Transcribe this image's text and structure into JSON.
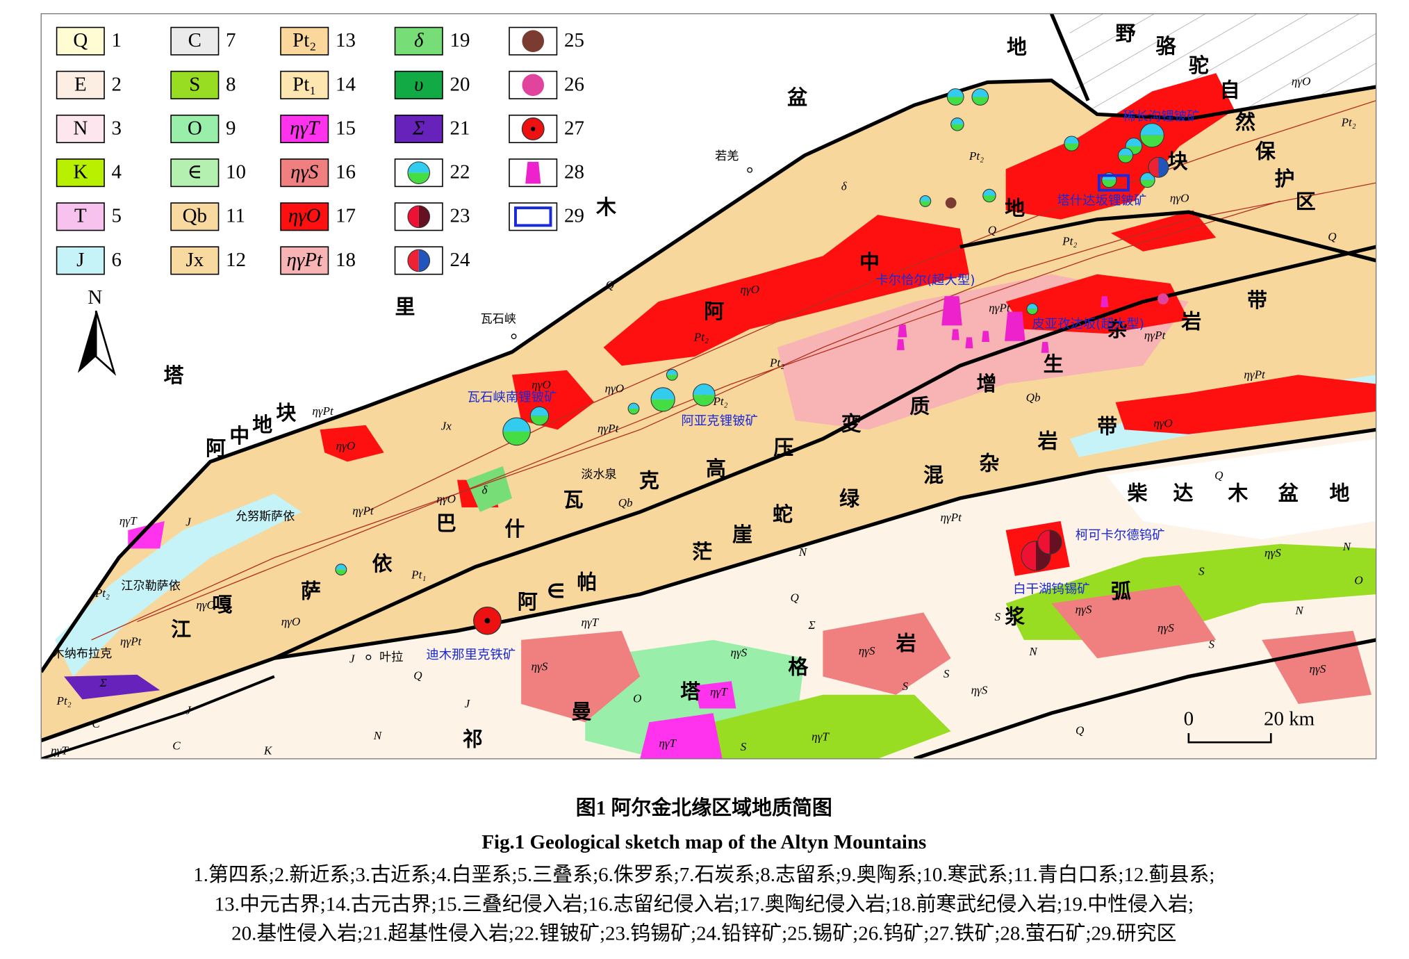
{
  "legend": [
    {
      "symbol": "Q",
      "number": 1,
      "color": "#fffbd2"
    },
    {
      "symbol": "E",
      "number": 2,
      "color": "#fdeee4"
    },
    {
      "symbol": "N",
      "number": 3,
      "color": "#fde6ee"
    },
    {
      "symbol": "K",
      "number": 4,
      "color": "#b8f000"
    },
    {
      "symbol": "T",
      "number": 5,
      "color": "#f7c2ee"
    },
    {
      "symbol": "J",
      "number": 6,
      "color": "#c6f3f8"
    },
    {
      "symbol": "C",
      "number": 7,
      "color": "#ebebeb"
    },
    {
      "symbol": "S",
      "number": 8,
      "color": "#99dd22"
    },
    {
      "symbol": "O",
      "number": 9,
      "color": "#99eeaa"
    },
    {
      "symbol": "∈",
      "number": 10,
      "color": "#b4f0b0"
    },
    {
      "symbol": "Qb",
      "number": 11,
      "color": "#f8d9a0"
    },
    {
      "symbol": "Jx",
      "number": 12,
      "color": "#f8d9a0"
    },
    {
      "symbol": "Pt₂",
      "number": 13,
      "color": "#fbd79c"
    },
    {
      "symbol": "Pt₁",
      "number": 14,
      "color": "#fde6b0"
    },
    {
      "symbol": "ηγT",
      "number": 15,
      "color": "#ff33ee"
    },
    {
      "symbol": "ηγS",
      "number": 16,
      "color": "#f08080"
    },
    {
      "symbol": "ηγO",
      "number": 17,
      "color": "#ff1010"
    },
    {
      "symbol": "ηγPt",
      "number": 18,
      "color": "#f8b4b4"
    },
    {
      "symbol": "δ",
      "number": 19,
      "color": "#77dd77"
    },
    {
      "symbol": "υ",
      "number": 20,
      "color": "#11aa44"
    },
    {
      "symbol": "Σ",
      "number": 21,
      "color": "#6622bb"
    },
    {
      "number": 22,
      "color": "#ffffff"
    },
    {
      "number": 23,
      "color": "#ffffff"
    },
    {
      "number": 24,
      "color": "#ffffff"
    },
    {
      "number": 25,
      "color": "#ffffff"
    },
    {
      "number": 26,
      "color": "#ffffff"
    },
    {
      "number": 27,
      "color": "#ffffff"
    },
    {
      "number": 28,
      "color": "#ffffff"
    },
    {
      "number": 29,
      "color": "#ffffff"
    }
  ],
  "north": "N",
  "places": [
    "若羌",
    "瓦石峡",
    "淡水泉",
    "允努斯萨依",
    "江尕勒萨依",
    "木纳布拉克",
    "叶拉"
  ],
  "deposits": [
    "稀长沟锂铍矿",
    "塔什达坂锂铍矿",
    "卡尔恰尔(超大型)",
    "皮亚孜达坂(超大型)",
    "瓦石峡南锂铍矿",
    "阿亚克锂铍矿",
    "柯可卡尔德钨矿",
    "白干湖钨锡矿",
    "迪木那里克铁矿"
  ],
  "units": [
    {
      "chars": [
        "塔",
        "里",
        "木",
        "盆",
        "地"
      ]
    },
    {
      "chars": [
        "野",
        "骆",
        "驼",
        "自",
        "然",
        "保",
        "护",
        "区"
      ]
    },
    {
      "chars": [
        "阿",
        "中",
        "地",
        "块"
      ]
    },
    {
      "chars": [
        "阿",
        "中",
        "地",
        "块"
      ]
    },
    {
      "chars": [
        "江",
        "嘎",
        "萨",
        "依",
        "巴",
        "什",
        "瓦",
        "克",
        "高",
        "压",
        "变",
        "质",
        "增",
        "生",
        "杂",
        "岩",
        "带"
      ]
    },
    {
      "chars": [
        "阿",
        "∈",
        "帕",
        "茫",
        "崖",
        "蛇",
        "绿",
        "混",
        "杂",
        "岩",
        "带"
      ]
    },
    {
      "chars": [
        "祁",
        "曼",
        "塔",
        "格",
        "岩",
        "浆",
        "弧"
      ]
    },
    {
      "chars": [
        "柴",
        "达",
        "木",
        "盆",
        "地"
      ]
    }
  ],
  "map_symbols": [
    "Q",
    "Q",
    "Q",
    "Q",
    "Q",
    "Q",
    "Q",
    "Pt₂",
    "Pt₂",
    "Pt₂",
    "Pt₂",
    "Pt₂",
    "Pt₂",
    "Pt₂",
    "Pt₂",
    "Pt₁",
    "Qb",
    "Qb",
    "Jx",
    "ηγO",
    "ηγO",
    "ηγO",
    "ηγO",
    "ηγO",
    "ηγO",
    "ηγO",
    "ηγO",
    "ηγO",
    "ηγO",
    "ηγPt",
    "ηγPt",
    "ηγPt",
    "ηγPt",
    "ηγPt",
    "ηγPt",
    "ηγPt",
    "ηγPt",
    "ηγT",
    "ηγT",
    "ηγT",
    "ηγT",
    "ηγT",
    "ηγT",
    "ηγS",
    "ηγS",
    "ηγS",
    "ηγS",
    "ηγS",
    "ηγS",
    "ηγS",
    "ηγS",
    "δ",
    "δ",
    "S",
    "S",
    "S",
    "S",
    "S",
    "S",
    "N",
    "N",
    "N",
    "N",
    "N",
    "O",
    "O",
    "K",
    "C",
    "C",
    "J",
    "J",
    "J",
    "J",
    "Σ",
    "Σ"
  ],
  "scale_bar": {
    "start": "0",
    "end": "20 km"
  },
  "caption": {
    "title_cn": "图1  阿尔金北缘区域地质简图",
    "title_en": "Fig.1  Geological sketch map of the Altyn Mountains",
    "notes": [
      "1.第四系;2.新近系;3.古近系;4.白垩系;5.三叠系;6.侏罗系;7.石炭系;8.志留系;9.奥陶系;10.寒武系;11.青白口系;12.蓟县系;",
      "13.中元古界;14.古元古界;15.三叠纪侵入岩;16.志留纪侵入岩;17.奥陶纪侵入岩;18.前寒武纪侵入岩;19.中性侵入岩;",
      "20.基性侵入岩;21.超基性侵入岩;22.锂铍矿;23.钨锡矿;24.铅锌矿;25.锡矿;26.钨矿;27.铁矿;28.萤石矿;29.研究区"
    ]
  }
}
